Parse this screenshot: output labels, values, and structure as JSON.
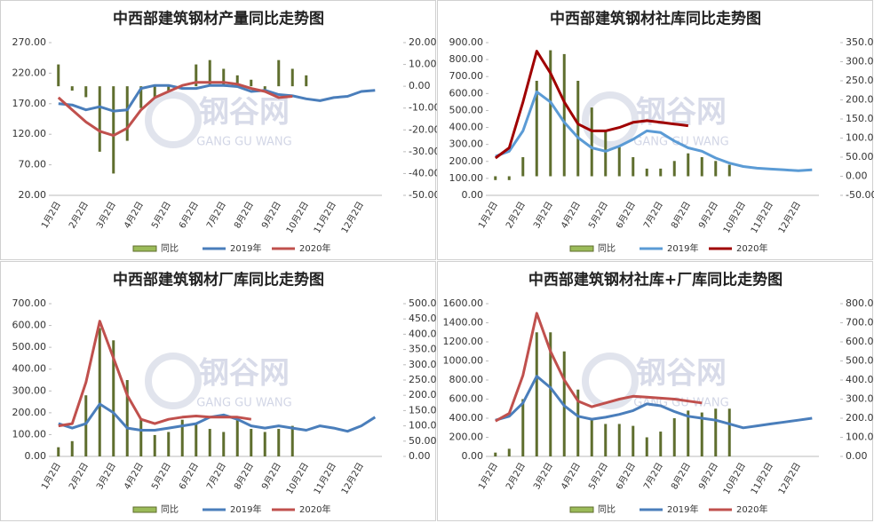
{
  "chart_data": [
    {
      "type": "combo",
      "title": "中西部建筑钢材产量同比走势图",
      "watermark": "钢谷网",
      "watermark_sub": "GANG GU WANG",
      "categories": [
        "1月2日",
        null,
        "2月2日",
        null,
        "3月2日",
        null,
        "4月2日",
        null,
        "5月2日",
        null,
        "6月2日",
        null,
        "7月2日",
        null,
        "8月2日",
        null,
        "9月2日",
        null,
        "10月2日",
        null,
        "11月2日",
        null,
        "12月2日",
        null
      ],
      "ylim": [
        20,
        270
      ],
      "yticks": [
        {
          "value": 20,
          "label": "20.00"
        },
        {
          "value": 70,
          "label": "70.00"
        },
        {
          "value": 120,
          "label": "120.00"
        },
        {
          "value": 170,
          "label": "170.00"
        },
        {
          "value": 220,
          "label": "220.00"
        },
        {
          "value": 270,
          "label": "270.00"
        }
      ],
      "y2lim": [
        -50,
        20
      ],
      "y2ticks": [
        {
          "value": -50,
          "label": "-50.00"
        },
        {
          "value": -40,
          "label": "-40.00"
        },
        {
          "value": -30,
          "label": "-30.00"
        },
        {
          "value": -20,
          "label": "-20.00"
        },
        {
          "value": -10,
          "label": "-10.00"
        },
        {
          "value": 0,
          "label": "0.00"
        },
        {
          "value": 10,
          "label": "10.00"
        },
        {
          "value": 20,
          "label": "20.00"
        }
      ],
      "series": [
        {
          "name": "同比",
          "type": "bar",
          "axis": "y2",
          "color": "#5f6e2e",
          "values": [
            10,
            -2,
            -5,
            -30,
            -40,
            -25,
            -10,
            -5,
            -2,
            0,
            10,
            12,
            8,
            5,
            3,
            -2,
            12,
            8,
            5,
            null,
            null,
            null,
            null,
            null
          ]
        },
        {
          "name": "2019年",
          "type": "line",
          "color": "#4a7ebb",
          "values": [
            170,
            168,
            160,
            165,
            158,
            160,
            195,
            200,
            200,
            195,
            195,
            200,
            200,
            198,
            190,
            192,
            185,
            183,
            178,
            175,
            180,
            182,
            190,
            192
          ]
        },
        {
          "name": "2020年",
          "type": "line",
          "color": "#c0504d",
          "values": [
            180,
            160,
            140,
            125,
            118,
            130,
            160,
            180,
            190,
            200,
            205,
            205,
            205,
            202,
            195,
            190,
            180,
            182,
            null,
            null,
            null,
            null,
            null,
            null
          ]
        }
      ]
    },
    {
      "type": "combo",
      "title": "中西部建筑钢材社库同比走势图",
      "watermark": "钢谷网",
      "watermark_sub": "GANG GU WANG",
      "categories": [
        "1月2日",
        null,
        "2月2日",
        null,
        "3月2日",
        null,
        "4月2日",
        null,
        "5月2日",
        null,
        "6月2日",
        null,
        "7月2日",
        null,
        "8月2日",
        null,
        "9月2日",
        null,
        "10月2日",
        null,
        "11月2日",
        null,
        "12月2日",
        null
      ],
      "ylim": [
        0,
        900
      ],
      "yticks": [
        {
          "value": 0,
          "label": "0.00"
        },
        {
          "value": 100,
          "label": "100.00"
        },
        {
          "value": 200,
          "label": "200.00"
        },
        {
          "value": 300,
          "label": "300.00"
        },
        {
          "value": 400,
          "label": "400.00"
        },
        {
          "value": 500,
          "label": "500.00"
        },
        {
          "value": 600,
          "label": "600.00"
        },
        {
          "value": 700,
          "label": "700.00"
        },
        {
          "value": 800,
          "label": "800.00"
        },
        {
          "value": 900,
          "label": "900.00"
        }
      ],
      "y2lim": [
        -50,
        350
      ],
      "y2ticks": [
        {
          "value": -50,
          "label": "-50.00"
        },
        {
          "value": 0,
          "label": "0.00"
        },
        {
          "value": 50,
          "label": "50.00"
        },
        {
          "value": 100,
          "label": "100.00"
        },
        {
          "value": 150,
          "label": "150.00"
        },
        {
          "value": 200,
          "label": "200.00"
        },
        {
          "value": 250,
          "label": "250.00"
        },
        {
          "value": 300,
          "label": "300.00"
        },
        {
          "value": 350,
          "label": "350.00"
        }
      ],
      "series": [
        {
          "name": "同比",
          "type": "bar",
          "axis": "y2",
          "color": "#5f6e2e",
          "values": [
            -10,
            -10,
            50,
            250,
            330,
            320,
            250,
            180,
            120,
            80,
            50,
            20,
            20,
            40,
            60,
            50,
            40,
            30,
            null,
            null,
            null,
            null,
            null,
            null
          ]
        },
        {
          "name": "2019年",
          "type": "line",
          "color": "#5b9bd5",
          "values": [
            230,
            260,
            380,
            610,
            550,
            430,
            340,
            280,
            260,
            290,
            330,
            380,
            370,
            320,
            280,
            260,
            220,
            190,
            170,
            160,
            155,
            150,
            145,
            150
          ]
        },
        {
          "name": "2020年",
          "type": "line",
          "color": "#a00000",
          "values": [
            220,
            280,
            550,
            850,
            720,
            550,
            420,
            380,
            380,
            400,
            430,
            440,
            430,
            420,
            410,
            null,
            null,
            null,
            null,
            null,
            null,
            null,
            null,
            null
          ]
        }
      ]
    },
    {
      "type": "combo",
      "title": "中西部建筑钢材厂库同比走势图",
      "watermark": "钢谷网",
      "watermark_sub": "GANG GU WANG",
      "categories": [
        "1月2日",
        null,
        "2月2日",
        null,
        "3月2日",
        null,
        "4月2日",
        null,
        "5月2日",
        null,
        "6月2日",
        null,
        "7月2日",
        null,
        "8月2日",
        null,
        "9月2日",
        null,
        "10月2日",
        null,
        "11月2日",
        null,
        "12月2日",
        null
      ],
      "ylim": [
        0,
        700
      ],
      "yticks": [
        {
          "value": 0,
          "label": "0.00"
        },
        {
          "value": 100,
          "label": "100.00"
        },
        {
          "value": 200,
          "label": "200.00"
        },
        {
          "value": 300,
          "label": "300.00"
        },
        {
          "value": 400,
          "label": "400.00"
        },
        {
          "value": 500,
          "label": "500.00"
        },
        {
          "value": 600,
          "label": "600.00"
        },
        {
          "value": 700,
          "label": "700.00"
        }
      ],
      "y2lim": [
        0,
        500
      ],
      "y2ticks": [
        {
          "value": 0,
          "label": "0.00"
        },
        {
          "value": 50,
          "label": "50.00"
        },
        {
          "value": 100,
          "label": "100.00"
        },
        {
          "value": 150,
          "label": "150.00"
        },
        {
          "value": 200,
          "label": "200.00"
        },
        {
          "value": 250,
          "label": "250.00"
        },
        {
          "value": 300,
          "label": "300.00"
        },
        {
          "value": 350,
          "label": "350.00"
        },
        {
          "value": 400,
          "label": "400.00"
        },
        {
          "value": 450,
          "label": "450.00"
        },
        {
          "value": 500,
          "label": "500.00"
        }
      ],
      "series": [
        {
          "name": "同比",
          "type": "bar",
          "axis": "y2",
          "color": "#5f6e2e",
          "values": [
            30,
            50,
            200,
            420,
            380,
            250,
            120,
            70,
            80,
            120,
            110,
            90,
            80,
            120,
            90,
            80,
            90,
            100,
            null,
            null,
            null,
            null,
            null,
            null
          ]
        },
        {
          "name": "2019年",
          "type": "line",
          "color": "#4a7ebb",
          "values": [
            150,
            130,
            150,
            240,
            200,
            130,
            120,
            120,
            130,
            140,
            150,
            180,
            190,
            170,
            140,
            130,
            140,
            130,
            120,
            140,
            130,
            115,
            140,
            180
          ]
        },
        {
          "name": "2020年",
          "type": "line",
          "color": "#c0504d",
          "values": [
            140,
            150,
            340,
            620,
            450,
            280,
            170,
            150,
            170,
            180,
            185,
            180,
            180,
            180,
            170,
            null,
            null,
            null,
            null,
            null,
            null,
            null,
            null,
            null
          ]
        }
      ]
    },
    {
      "type": "combo",
      "title": "中西部建筑钢材社库+厂库同比走势图",
      "watermark": "钢谷网",
      "watermark_sub": "GANG GU WANG",
      "categories": [
        "1月2日",
        null,
        "2月2日",
        null,
        "3月2日",
        null,
        "4月2日",
        null,
        "5月2日",
        null,
        "6月2日",
        null,
        "7月2日",
        null,
        "8月2日",
        null,
        "9月2日",
        null,
        "10月2日",
        null,
        "11月2日",
        null,
        "12月2日",
        null
      ],
      "ylim": [
        0,
        1600
      ],
      "yticks": [
        {
          "value": 0,
          "label": "0.00"
        },
        {
          "value": 200,
          "label": "200.00"
        },
        {
          "value": 400,
          "label": "400.00"
        },
        {
          "value": 600,
          "label": "600.00"
        },
        {
          "value": 800,
          "label": "800.00"
        },
        {
          "value": 1000,
          "label": "1000.00"
        },
        {
          "value": 1200,
          "label": "1200.00"
        },
        {
          "value": 1400,
          "label": "1400.00"
        },
        {
          "value": 1600,
          "label": "1600.00"
        }
      ],
      "y2lim": [
        0,
        800
      ],
      "y2ticks": [
        {
          "value": 0,
          "label": "0.00"
        },
        {
          "value": 100,
          "label": "100.00"
        },
        {
          "value": 200,
          "label": "200.00"
        },
        {
          "value": 300,
          "label": "300.00"
        },
        {
          "value": 400,
          "label": "400.00"
        },
        {
          "value": 500,
          "label": "500.00"
        },
        {
          "value": 600,
          "label": "600.00"
        },
        {
          "value": 700,
          "label": "700.00"
        },
        {
          "value": 800,
          "label": "800.00"
        }
      ],
      "series": [
        {
          "name": "同比",
          "type": "bar",
          "axis": "y2",
          "color": "#5f6e2e",
          "values": [
            20,
            40,
            300,
            650,
            650,
            550,
            350,
            200,
            170,
            170,
            160,
            100,
            130,
            200,
            240,
            230,
            250,
            250,
            null,
            null,
            null,
            null,
            null,
            null
          ]
        },
        {
          "name": "2019年",
          "type": "line",
          "color": "#4a7ebb",
          "values": [
            380,
            420,
            560,
            840,
            720,
            530,
            420,
            390,
            410,
            440,
            480,
            550,
            530,
            470,
            420,
            400,
            380,
            340,
            300,
            320,
            340,
            360,
            380,
            400
          ]
        },
        {
          "name": "2020年",
          "type": "line",
          "color": "#c0504d",
          "values": [
            370,
            450,
            850,
            1500,
            1100,
            800,
            580,
            520,
            560,
            600,
            630,
            620,
            610,
            600,
            580,
            560,
            null,
            null,
            null,
            null,
            null,
            null,
            null,
            null
          ]
        }
      ]
    }
  ]
}
